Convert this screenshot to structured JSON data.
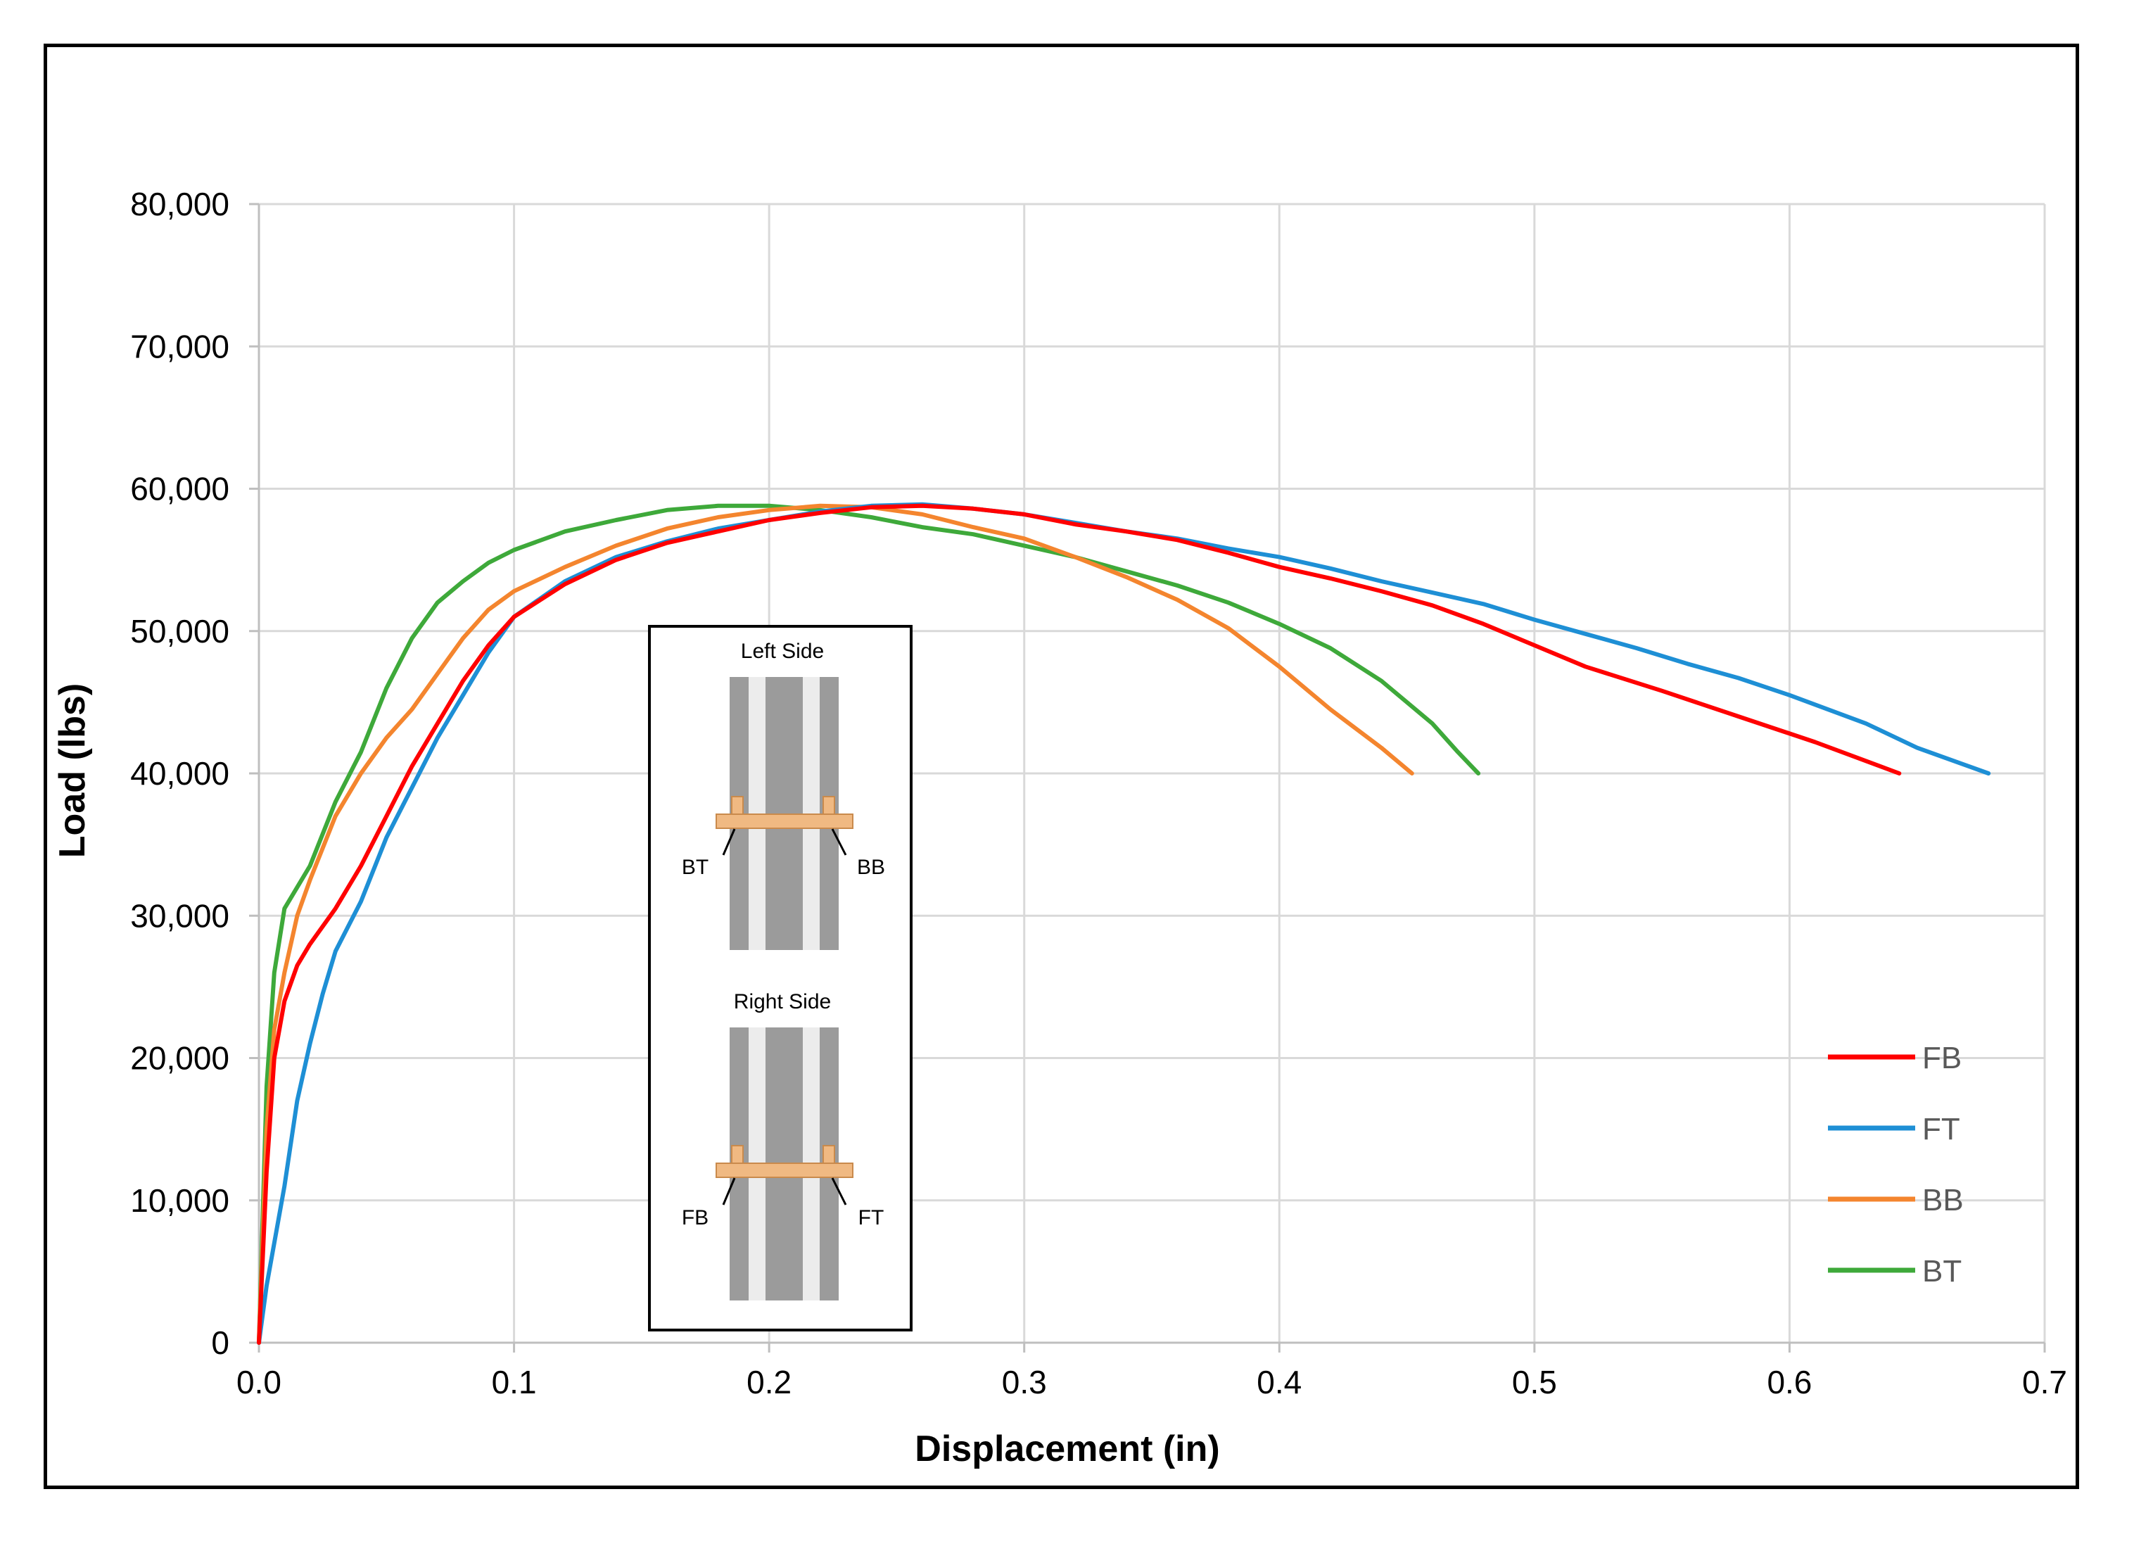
{
  "chart_data": {
    "type": "line",
    "title": "",
    "xlabel": "Displacement (in)",
    "ylabel": "Load (lbs)",
    "xlim": [
      0,
      0.7
    ],
    "ylim": [
      0,
      80000
    ],
    "grid": true,
    "legend_position": "bottom-right",
    "x_ticks": [
      0,
      0.1,
      0.2,
      0.3,
      0.4,
      0.5,
      0.6,
      0.7
    ],
    "x_tick_labels": [
      "0.0",
      "0.1",
      "0.2",
      "0.3",
      "0.4",
      "0.5",
      "0.6",
      "0.7"
    ],
    "y_ticks": [
      0,
      10000,
      20000,
      30000,
      40000,
      50000,
      60000,
      70000,
      80000
    ],
    "y_tick_labels": [
      "0",
      "10,000",
      "20,000",
      "30,000",
      "40,000",
      "50,000",
      "60,000",
      "70,000",
      "80,000"
    ],
    "series": [
      {
        "name": "FB",
        "color": "#ff0000",
        "points": [
          [
            0,
            0
          ],
          [
            0.003,
            12000
          ],
          [
            0.006,
            20000
          ],
          [
            0.01,
            24000
          ],
          [
            0.015,
            26500
          ],
          [
            0.02,
            28000
          ],
          [
            0.03,
            30500
          ],
          [
            0.04,
            33500
          ],
          [
            0.05,
            37000
          ],
          [
            0.06,
            40500
          ],
          [
            0.07,
            43500
          ],
          [
            0.08,
            46500
          ],
          [
            0.09,
            49000
          ],
          [
            0.1,
            51000
          ],
          [
            0.12,
            53300
          ],
          [
            0.14,
            55000
          ],
          [
            0.16,
            56200
          ],
          [
            0.18,
            57000
          ],
          [
            0.2,
            57800
          ],
          [
            0.22,
            58300
          ],
          [
            0.24,
            58700
          ],
          [
            0.26,
            58800
          ],
          [
            0.28,
            58600
          ],
          [
            0.3,
            58200
          ],
          [
            0.32,
            57500
          ],
          [
            0.34,
            57000
          ],
          [
            0.36,
            56400
          ],
          [
            0.38,
            55500
          ],
          [
            0.4,
            54500
          ],
          [
            0.42,
            53700
          ],
          [
            0.44,
            52800
          ],
          [
            0.46,
            51800
          ],
          [
            0.48,
            50500
          ],
          [
            0.5,
            49000
          ],
          [
            0.52,
            47500
          ],
          [
            0.55,
            45800
          ],
          [
            0.58,
            44000
          ],
          [
            0.61,
            42200
          ],
          [
            0.643,
            40000
          ]
        ]
      },
      {
        "name": "FT",
        "color": "#1e8fd5",
        "points": [
          [
            0,
            0
          ],
          [
            0.003,
            4000
          ],
          [
            0.006,
            7000
          ],
          [
            0.01,
            11000
          ],
          [
            0.015,
            17000
          ],
          [
            0.02,
            21000
          ],
          [
            0.025,
            24500
          ],
          [
            0.03,
            27500
          ],
          [
            0.04,
            31000
          ],
          [
            0.05,
            35500
          ],
          [
            0.06,
            39000
          ],
          [
            0.07,
            42500
          ],
          [
            0.08,
            45500
          ],
          [
            0.09,
            48500
          ],
          [
            0.1,
            51000
          ],
          [
            0.12,
            53500
          ],
          [
            0.14,
            55200
          ],
          [
            0.16,
            56300
          ],
          [
            0.18,
            57200
          ],
          [
            0.2,
            57800
          ],
          [
            0.22,
            58400
          ],
          [
            0.24,
            58800
          ],
          [
            0.26,
            58900
          ],
          [
            0.28,
            58600
          ],
          [
            0.3,
            58200
          ],
          [
            0.32,
            57600
          ],
          [
            0.34,
            57000
          ],
          [
            0.36,
            56500
          ],
          [
            0.38,
            55800
          ],
          [
            0.4,
            55200
          ],
          [
            0.42,
            54400
          ],
          [
            0.44,
            53500
          ],
          [
            0.46,
            52700
          ],
          [
            0.48,
            51900
          ],
          [
            0.5,
            50800
          ],
          [
            0.52,
            49800
          ],
          [
            0.54,
            48800
          ],
          [
            0.56,
            47700
          ],
          [
            0.58,
            46700
          ],
          [
            0.6,
            45500
          ],
          [
            0.63,
            43500
          ],
          [
            0.65,
            41800
          ],
          [
            0.678,
            40000
          ]
        ]
      },
      {
        "name": "BB",
        "color": "#f4852e",
        "points": [
          [
            0,
            0
          ],
          [
            0.003,
            15000
          ],
          [
            0.006,
            22000
          ],
          [
            0.01,
            26000
          ],
          [
            0.015,
            30000
          ],
          [
            0.02,
            32500
          ],
          [
            0.03,
            37000
          ],
          [
            0.04,
            40000
          ],
          [
            0.05,
            42500
          ],
          [
            0.06,
            44500
          ],
          [
            0.07,
            47000
          ],
          [
            0.08,
            49500
          ],
          [
            0.09,
            51500
          ],
          [
            0.1,
            52800
          ],
          [
            0.12,
            54500
          ],
          [
            0.14,
            56000
          ],
          [
            0.16,
            57200
          ],
          [
            0.18,
            58000
          ],
          [
            0.2,
            58500
          ],
          [
            0.22,
            58800
          ],
          [
            0.24,
            58700
          ],
          [
            0.26,
            58200
          ],
          [
            0.28,
            57300
          ],
          [
            0.3,
            56500
          ],
          [
            0.32,
            55200
          ],
          [
            0.34,
            53800
          ],
          [
            0.36,
            52200
          ],
          [
            0.38,
            50200
          ],
          [
            0.4,
            47500
          ],
          [
            0.42,
            44500
          ],
          [
            0.44,
            41800
          ],
          [
            0.452,
            40000
          ]
        ]
      },
      {
        "name": "BT",
        "color": "#3ea93a",
        "points": [
          [
            0,
            0
          ],
          [
            0.003,
            18000
          ],
          [
            0.006,
            26000
          ],
          [
            0.01,
            30500
          ],
          [
            0.015,
            32000
          ],
          [
            0.02,
            33500
          ],
          [
            0.03,
            38000
          ],
          [
            0.04,
            41500
          ],
          [
            0.05,
            46000
          ],
          [
            0.06,
            49500
          ],
          [
            0.07,
            52000
          ],
          [
            0.08,
            53500
          ],
          [
            0.09,
            54800
          ],
          [
            0.1,
            55700
          ],
          [
            0.12,
            57000
          ],
          [
            0.14,
            57800
          ],
          [
            0.16,
            58500
          ],
          [
            0.18,
            58800
          ],
          [
            0.2,
            58800
          ],
          [
            0.22,
            58500
          ],
          [
            0.24,
            58000
          ],
          [
            0.26,
            57300
          ],
          [
            0.28,
            56800
          ],
          [
            0.3,
            56000
          ],
          [
            0.32,
            55200
          ],
          [
            0.34,
            54200
          ],
          [
            0.36,
            53200
          ],
          [
            0.38,
            52000
          ],
          [
            0.4,
            50500
          ],
          [
            0.42,
            48800
          ],
          [
            0.44,
            46500
          ],
          [
            0.46,
            43500
          ],
          [
            0.47,
            41500
          ],
          [
            0.478,
            40000
          ]
        ]
      }
    ],
    "inset": {
      "top_title": "Left Side",
      "top_labels": [
        "BT",
        "BB"
      ],
      "bottom_title": "Right Side",
      "bottom_labels": [
        "FB",
        "FT"
      ]
    }
  }
}
